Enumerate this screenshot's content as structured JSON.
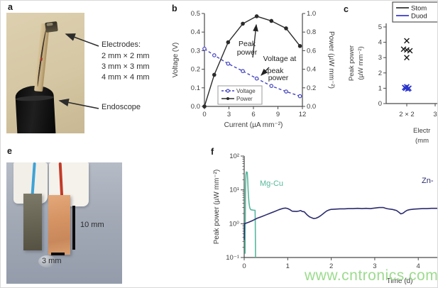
{
  "figure": {
    "panel_labels": {
      "a": "a",
      "b": "b",
      "c": "c",
      "e": "e",
      "f": "f"
    },
    "watermark": "www.cntronics.com"
  },
  "panel_a": {
    "electrodes_title": "Electrodes:",
    "electrode_sizes": [
      "2 mm × 2 mm",
      "3 mm × 3 mm",
      "4 mm × 4 mm"
    ],
    "endoscope_label": "Endoscope"
  },
  "panel_e": {
    "scale_10mm": "10 mm",
    "scale_3mm": "3 mm"
  },
  "chart_data": [
    {
      "id": "b",
      "type": "line",
      "xlabel": "Current (µA mm⁻²)",
      "ylabel_left": "Voltage (V)",
      "ylabel_right": "Power (µW mm⁻²)",
      "xlim": [
        0,
        12
      ],
      "x_ticks": [
        0,
        3,
        6,
        9,
        12
      ],
      "ylim_left": [
        0,
        0.5
      ],
      "y_ticks_left": [
        "0.0",
        "0.1",
        "0.2",
        "0.3",
        "0.4",
        "0.5"
      ],
      "ylim_right": [
        0,
        1.0
      ],
      "y_ticks_right": [
        "0.0",
        "0.2",
        "0.4",
        "0.6",
        "0.8",
        "1.0"
      ],
      "legend": [
        "Voltage",
        "Power"
      ],
      "annotations": {
        "peak_power": [
          "Peak",
          "power"
        ],
        "voltage_at": [
          "Voltage at",
          "peak",
          "power"
        ]
      },
      "series": [
        {
          "name": "Voltage",
          "axis": "left",
          "color": "#4444c0",
          "style": "dashed",
          "marker": "open-circle",
          "x": [
            0,
            1.2,
            2.9,
            4.7,
            6.4,
            8.2,
            10,
            11.7
          ],
          "y": [
            0.31,
            0.275,
            0.23,
            0.19,
            0.15,
            0.11,
            0.08,
            0.055
          ]
        },
        {
          "name": "Power",
          "axis": "right",
          "color": "#2b2b2b",
          "style": "solid",
          "marker": "filled-circle",
          "x": [
            0,
            1.2,
            2.9,
            4.7,
            6.4,
            8.2,
            10,
            11.7
          ],
          "y": [
            0,
            0.34,
            0.69,
            0.89,
            0.97,
            0.92,
            0.84,
            0.65
          ]
        }
      ]
    },
    {
      "id": "c",
      "type": "scatter",
      "ylabel_lines": [
        "Peak power",
        "(µW mm⁻²)"
      ],
      "xlabel_lines_visible": [
        "Electr",
        "(mm"
      ],
      "ylim": [
        0,
        5
      ],
      "y_ticks": [
        "0",
        "1",
        "2",
        "3",
        "4",
        "5"
      ],
      "x_categories_visible": [
        "2 × 2",
        "3"
      ],
      "legend": [
        {
          "label": "Stom",
          "color": "#333333"
        },
        {
          "label": "Duod",
          "color": "#3a3acc"
        }
      ],
      "series": [
        {
          "name": "Stom",
          "color": "#161616",
          "marker": "x",
          "category": "2 × 2",
          "values": [
            4.1,
            3.55,
            3.5,
            3.45,
            3.0
          ]
        },
        {
          "name": "Duod",
          "color": "#2a35cc",
          "marker": "x",
          "category": "2 × 2",
          "values": [
            1.1,
            1.05,
            1.0,
            1.0,
            0.95
          ]
        }
      ]
    },
    {
      "id": "f",
      "type": "line",
      "xlabel": "Time (d)",
      "ylabel": "Peak power (µW mm⁻²)",
      "yscale": "log",
      "ylim": [
        0.1,
        100
      ],
      "y_ticks": [
        "10⁻¹",
        "10⁰",
        "10¹",
        "10²"
      ],
      "xlim": [
        0,
        4.47
      ],
      "x_ticks": [
        0,
        1,
        2,
        3,
        4
      ],
      "series": [
        {
          "name": "Mg-Cu",
          "color": "#56b89c",
          "label_visible": "Mg-Cu",
          "points": [
            [
              0.02,
              0.13
            ],
            [
              0.025,
              1.5
            ],
            [
              0.03,
              12
            ],
            [
              0.04,
              28
            ],
            [
              0.05,
              34
            ],
            [
              0.07,
              33
            ],
            [
              0.08,
              20
            ],
            [
              0.09,
              10
            ],
            [
              0.1,
              6
            ],
            [
              0.11,
              4.2
            ],
            [
              0.12,
              3.4
            ],
            [
              0.13,
              2.9
            ],
            [
              0.15,
              2.6
            ],
            [
              0.18,
              2.55
            ],
            [
              0.22,
              2.5
            ],
            [
              0.25,
              2.5
            ],
            [
              0.255,
              1.0
            ],
            [
              0.26,
              0.1
            ]
          ]
        },
        {
          "name": "Zn",
          "color": "#2b2b6e",
          "label_visible": "Zn-",
          "points": [
            [
              0,
              0.33
            ],
            [
              0.005,
              1.0
            ],
            [
              0.03,
              1.02
            ],
            [
              0.1,
              1.1
            ],
            [
              0.2,
              1.25
            ],
            [
              0.3,
              1.45
            ],
            [
              0.4,
              1.62
            ],
            [
              0.5,
              1.82
            ],
            [
              0.6,
              2.05
            ],
            [
              0.7,
              2.3
            ],
            [
              0.8,
              2.6
            ],
            [
              0.9,
              2.85
            ],
            [
              0.95,
              2.9
            ],
            [
              1.0,
              2.8
            ],
            [
              1.05,
              2.6
            ],
            [
              1.1,
              2.35
            ],
            [
              1.2,
              2.3
            ],
            [
              1.25,
              2.35
            ],
            [
              1.3,
              2.45
            ],
            [
              1.33,
              2.3
            ],
            [
              1.38,
              2.25
            ],
            [
              1.45,
              1.8
            ],
            [
              1.5,
              1.6
            ],
            [
              1.55,
              1.5
            ],
            [
              1.6,
              1.42
            ],
            [
              1.65,
              1.45
            ],
            [
              1.7,
              1.55
            ],
            [
              1.75,
              1.7
            ],
            [
              1.8,
              1.9
            ],
            [
              1.85,
              2.15
            ],
            [
              1.9,
              2.4
            ],
            [
              1.95,
              2.55
            ],
            [
              2.0,
              2.65
            ],
            [
              2.1,
              2.7
            ],
            [
              2.2,
              2.75
            ],
            [
              2.3,
              2.75
            ],
            [
              2.4,
              2.8
            ],
            [
              2.5,
              2.8
            ],
            [
              2.6,
              2.85
            ],
            [
              2.7,
              2.8
            ],
            [
              2.8,
              2.85
            ],
            [
              2.9,
              2.8
            ],
            [
              3.0,
              2.9
            ],
            [
              3.1,
              3.0
            ],
            [
              3.2,
              3.0
            ],
            [
              3.25,
              2.85
            ],
            [
              3.3,
              2.75
            ],
            [
              3.4,
              2.65
            ],
            [
              3.45,
              2.55
            ],
            [
              3.5,
              2.45
            ],
            [
              3.55,
              2.2
            ],
            [
              3.6,
              1.95
            ],
            [
              3.65,
              2.05
            ],
            [
              3.7,
              2.3
            ],
            [
              3.75,
              2.5
            ],
            [
              3.8,
              2.6
            ],
            [
              3.9,
              2.7
            ],
            [
              4.0,
              2.75
            ],
            [
              4.1,
              2.8
            ],
            [
              4.2,
              2.8
            ],
            [
              4.3,
              2.85
            ],
            [
              4.47,
              2.85
            ]
          ]
        }
      ]
    }
  ]
}
